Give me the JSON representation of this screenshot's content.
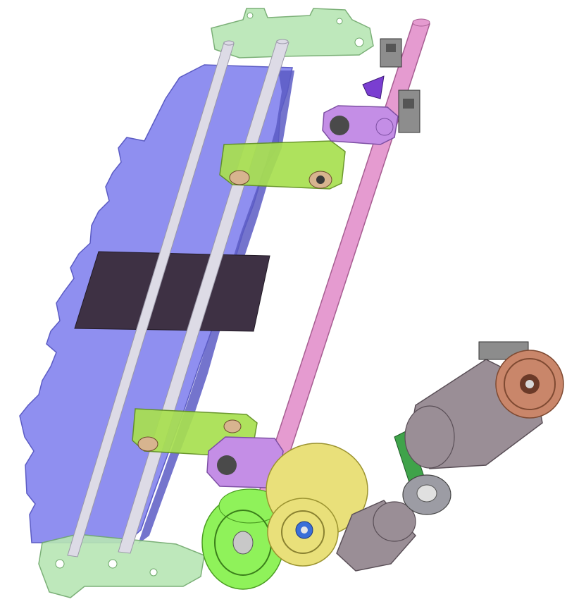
{
  "diagram": {
    "kind": "3d-cad-mechanical-assembly",
    "colors": {
      "base_plate": "#8f8ff0",
      "base_plate_edge": "#5c5cc4",
      "film_band": "#3e3144",
      "rod": "#dddbe6",
      "rod_edge": "#9a98a8",
      "main_shaft": "#e59bd0",
      "main_shaft_edge": "#a75e92",
      "green_bracket": "#a8e050",
      "green_bracket_edge": "#5f8f1e",
      "end_plate": "#b7e6b4",
      "end_plate_edge": "#6ea86a",
      "purple_bearing": "#c48ee6",
      "purple_bearing_edge": "#7d4fa3",
      "yellow_pulley": "#e9e07a",
      "yellow_pulley_edge": "#9c9431",
      "green_pulley": "#8ff25a",
      "green_pulley_edge": "#4c9e23",
      "motor": "#9a8e96",
      "motor_edge": "#5a4f57",
      "gear": "#c9866a",
      "gear_edge": "#7f4a32",
      "green_link": "#3fa34a"
    }
  }
}
